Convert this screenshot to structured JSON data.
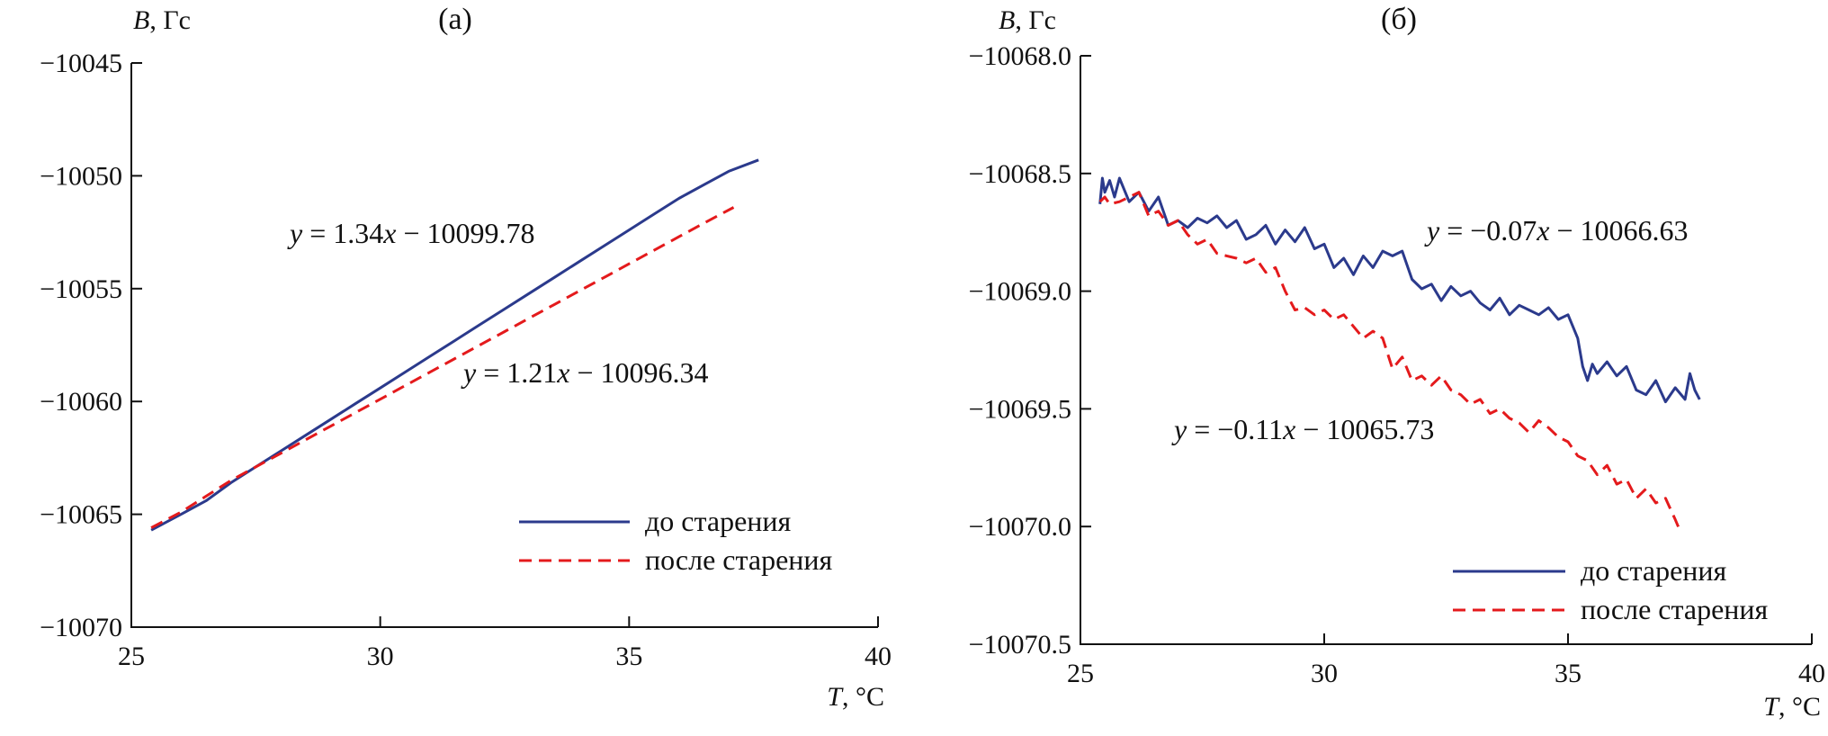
{
  "colors": {
    "before": "#2b3a8c",
    "after": "#e41a1c"
  },
  "chart_data": [
    {
      "type": "line",
      "panel_label": "(а)",
      "ylabel_var": "B",
      "ylabel_unit": ", Гс",
      "xlabel_var": "T",
      "xlabel_unit": ", °C",
      "xlim": [
        25,
        40
      ],
      "ylim": [
        -10070,
        -10045
      ],
      "xticks": [
        25,
        30,
        35,
        40
      ],
      "yticks": [
        -10070,
        -10065,
        -10060,
        -10055,
        -10050,
        -10045
      ],
      "ytick_labels": [
        "−10070",
        "−10065",
        "−10060",
        "−10055",
        "−10050",
        "−10045"
      ],
      "legend": {
        "position": "bottom-right",
        "before": "до старения",
        "after": "после старения"
      },
      "annotations": [
        {
          "series": "before",
          "text_y": "y",
          "text_mid": " = 1.34",
          "text_x": "x",
          "text_rest": " − 10099.78"
        },
        {
          "series": "after",
          "text_y": "y",
          "text_mid": " = 1.21",
          "text_x": "x",
          "text_rest": " − 10096.34"
        }
      ],
      "series": [
        {
          "name": "до старения",
          "style": "solid",
          "x": [
            25.4,
            26.0,
            26.5,
            27.0,
            27.5,
            28.0,
            28.5,
            29.0,
            29.5,
            30.0,
            30.5,
            31.0,
            31.5,
            32.0,
            32.5,
            33.0,
            33.5,
            34.0,
            34.5,
            35.0,
            35.5,
            36.0,
            36.5,
            37.0,
            37.6
          ],
          "y": [
            -10065.7,
            -10065.0,
            -10064.4,
            -10063.6,
            -10062.9,
            -10062.2,
            -10061.5,
            -10060.8,
            -10060.1,
            -10059.4,
            -10058.7,
            -10058.0,
            -10057.3,
            -10056.6,
            -10055.9,
            -10055.2,
            -10054.5,
            -10053.8,
            -10053.1,
            -10052.4,
            -10051.7,
            -10051.0,
            -10050.4,
            -10049.8,
            -10049.3
          ]
        },
        {
          "name": "после старения",
          "style": "dashed",
          "x": [
            25.4,
            26.0,
            26.5,
            27.0,
            27.5,
            28.0,
            28.5,
            29.0,
            29.5,
            30.0,
            30.5,
            31.0,
            31.5,
            32.0,
            32.5,
            33.0,
            33.5,
            34.0,
            34.5,
            35.0,
            35.5,
            36.0,
            36.5,
            37.1
          ],
          "y": [
            -10065.6,
            -10064.9,
            -10064.2,
            -10063.5,
            -10062.9,
            -10062.3,
            -10061.7,
            -10061.1,
            -10060.5,
            -10059.9,
            -10059.3,
            -10058.7,
            -10058.1,
            -10057.5,
            -10056.9,
            -10056.3,
            -10055.7,
            -10055.1,
            -10054.5,
            -10053.9,
            -10053.3,
            -10052.7,
            -10052.1,
            -10051.4
          ]
        }
      ]
    },
    {
      "type": "line",
      "panel_label": "(б)",
      "ylabel_var": "B",
      "ylabel_unit": ", Гс",
      "xlabel_var": "T",
      "xlabel_unit": ", °C",
      "xlim": [
        25,
        40
      ],
      "ylim": [
        -10070.5,
        -10068.0
      ],
      "xticks": [
        25,
        30,
        35,
        40
      ],
      "yticks": [
        -10070.5,
        -10070.0,
        -10069.5,
        -10069.0,
        -10068.5,
        -10068.0
      ],
      "ytick_labels": [
        "−10070.5",
        "−10070.0",
        "−10069.5",
        "−10069.0",
        "−10068.5",
        "−10068.0"
      ],
      "legend": {
        "position": "bottom-right",
        "before": "до старения",
        "after": "после старения"
      },
      "annotations": [
        {
          "series": "before",
          "text_y": "y",
          "text_mid": " = −0.07",
          "text_x": "x",
          "text_rest": " − 10066.63"
        },
        {
          "series": "after",
          "text_y": "y",
          "text_mid": " = −0.11",
          "text_x": "x",
          "text_rest": " − 10065.73"
        }
      ],
      "series": [
        {
          "name": "до старения",
          "style": "solid",
          "x": [
            25.4,
            25.45,
            25.5,
            25.6,
            25.7,
            25.8,
            26.0,
            26.2,
            26.4,
            26.6,
            26.8,
            27.0,
            27.2,
            27.4,
            27.6,
            27.8,
            28.0,
            28.2,
            28.4,
            28.6,
            28.8,
            29.0,
            29.2,
            29.4,
            29.6,
            29.8,
            30.0,
            30.2,
            30.4,
            30.6,
            30.8,
            31.0,
            31.2,
            31.4,
            31.6,
            31.8,
            32.0,
            32.2,
            32.4,
            32.6,
            32.8,
            33.0,
            33.2,
            33.4,
            33.6,
            33.8,
            34.0,
            34.2,
            34.4,
            34.6,
            34.8,
            35.0,
            35.2,
            35.3,
            35.4,
            35.5,
            35.6,
            35.8,
            36.0,
            36.2,
            36.4,
            36.6,
            36.8,
            37.0,
            37.2,
            37.4,
            37.5,
            37.6,
            37.7
          ],
          "y": [
            -10068.63,
            -10068.52,
            -10068.58,
            -10068.53,
            -10068.6,
            -10068.52,
            -10068.62,
            -10068.58,
            -10068.66,
            -10068.6,
            -10068.72,
            -10068.7,
            -10068.73,
            -10068.69,
            -10068.71,
            -10068.68,
            -10068.73,
            -10068.7,
            -10068.78,
            -10068.76,
            -10068.72,
            -10068.8,
            -10068.74,
            -10068.79,
            -10068.73,
            -10068.82,
            -10068.8,
            -10068.9,
            -10068.86,
            -10068.93,
            -10068.85,
            -10068.9,
            -10068.83,
            -10068.85,
            -10068.83,
            -10068.95,
            -10068.99,
            -10068.97,
            -10069.04,
            -10068.98,
            -10069.02,
            -10069.0,
            -10069.05,
            -10069.08,
            -10069.03,
            -10069.1,
            -10069.06,
            -10069.08,
            -10069.1,
            -10069.07,
            -10069.12,
            -10069.1,
            -10069.2,
            -10069.32,
            -10069.38,
            -10069.31,
            -10069.35,
            -10069.3,
            -10069.36,
            -10069.32,
            -10069.42,
            -10069.44,
            -10069.38,
            -10069.47,
            -10069.41,
            -10069.46,
            -10069.35,
            -10069.42,
            -10069.46
          ]
        },
        {
          "name": "после старения",
          "style": "dashed",
          "x": [
            25.4,
            25.5,
            25.6,
            25.8,
            26.0,
            26.2,
            26.4,
            26.6,
            26.8,
            27.0,
            27.2,
            27.4,
            27.6,
            27.8,
            28.0,
            28.2,
            28.4,
            28.6,
            28.8,
            29.0,
            29.2,
            29.4,
            29.6,
            29.8,
            30.0,
            30.2,
            30.4,
            30.6,
            30.8,
            31.0,
            31.2,
            31.4,
            31.6,
            31.8,
            32.0,
            32.2,
            32.4,
            32.6,
            32.8,
            33.0,
            33.2,
            33.4,
            33.6,
            33.8,
            34.0,
            34.2,
            34.4,
            34.6,
            34.8,
            35.0,
            35.2,
            35.4,
            35.6,
            35.8,
            36.0,
            36.2,
            36.4,
            36.6,
            36.8,
            37.0,
            37.2,
            37.3
          ],
          "y": [
            -10068.62,
            -10068.6,
            -10068.63,
            -10068.62,
            -10068.6,
            -10068.58,
            -10068.68,
            -10068.66,
            -10068.72,
            -10068.7,
            -10068.76,
            -10068.8,
            -10068.78,
            -10068.84,
            -10068.85,
            -10068.86,
            -10068.88,
            -10068.86,
            -10068.92,
            -10068.9,
            -10069.0,
            -10069.08,
            -10069.07,
            -10069.1,
            -10069.08,
            -10069.12,
            -10069.1,
            -10069.15,
            -10069.2,
            -10069.17,
            -10069.2,
            -10069.33,
            -10069.28,
            -10069.38,
            -10069.36,
            -10069.4,
            -10069.36,
            -10069.42,
            -10069.44,
            -10069.48,
            -10069.46,
            -10069.52,
            -10069.5,
            -10069.54,
            -10069.56,
            -10069.6,
            -10069.55,
            -10069.58,
            -10069.62,
            -10069.64,
            -10069.7,
            -10069.72,
            -10069.78,
            -10069.74,
            -10069.82,
            -10069.8,
            -10069.88,
            -10069.84,
            -10069.9,
            -10069.88,
            -10069.97,
            -10070.02
          ]
        }
      ]
    }
  ]
}
